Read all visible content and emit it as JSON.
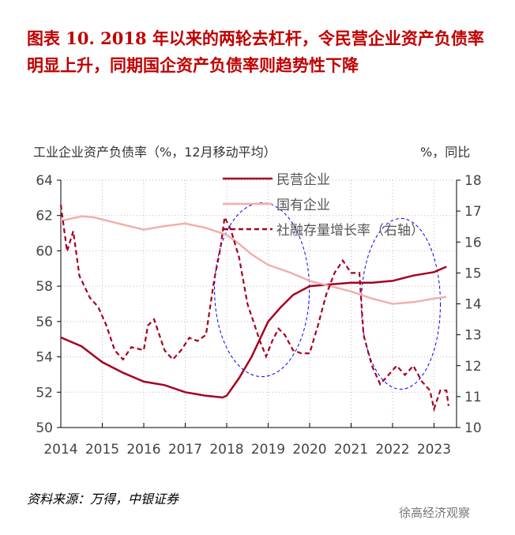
{
  "title": "图表 10. 2018 年以来的两轮去杠杆，令民营企业资产负债率明显上升，同期国企资产负债率则趋势性下降",
  "source": "资料来源：万得，中银证券",
  "watermark": "徐高经济观察",
  "chart_data": {
    "type": "line",
    "ylabel_left": "工业企业资产负债率（%，12月移动平均）",
    "ylabel_right": "%，同比",
    "ylim_left": [
      50,
      64
    ],
    "yticks_left": [
      "50",
      "52",
      "54",
      "56",
      "58",
      "60",
      "62",
      "64"
    ],
    "ylim_right": [
      10,
      18
    ],
    "yticks_right": [
      "10",
      "11",
      "12",
      "13",
      "14",
      "15",
      "16",
      "17",
      "18"
    ],
    "xticks": [
      "2014",
      "2015",
      "2016",
      "2017",
      "2018",
      "2019",
      "2020",
      "2021",
      "2022",
      "2023"
    ],
    "grid": true,
    "legend_placement": "top-center",
    "series": [
      {
        "name": "民营企业",
        "axis": "left",
        "color": "#a50021",
        "style": "solid",
        "x": [
          2014.0,
          2014.5,
          2015.0,
          2015.5,
          2016.0,
          2016.5,
          2017.0,
          2017.5,
          2017.9,
          2018.0,
          2018.3,
          2018.6,
          2018.8,
          2019.0,
          2019.3,
          2019.6,
          2020.0,
          2020.5,
          2021.0,
          2021.5,
          2022.0,
          2022.5,
          2023.0,
          2023.3
        ],
        "y": [
          55.1,
          54.6,
          53.7,
          53.1,
          52.6,
          52.4,
          52.0,
          51.8,
          51.7,
          51.8,
          52.8,
          54.0,
          55.0,
          56.0,
          56.8,
          57.5,
          58.0,
          58.1,
          58.2,
          58.2,
          58.3,
          58.6,
          58.8,
          59.1
        ]
      },
      {
        "name": "国有企业",
        "axis": "left",
        "color": "#f0b0aa",
        "style": "solid",
        "x": [
          2014.0,
          2014.5,
          2014.8,
          2015.3,
          2016.0,
          2016.5,
          2017.0,
          2017.5,
          2018.0,
          2018.3,
          2018.6,
          2019.0,
          2019.5,
          2020.0,
          2020.5,
          2021.0,
          2021.5,
          2022.0,
          2022.5,
          2023.0,
          2023.3
        ],
        "y": [
          61.7,
          61.95,
          61.9,
          61.6,
          61.2,
          61.4,
          61.55,
          61.3,
          60.9,
          60.4,
          59.8,
          59.2,
          58.8,
          58.3,
          58.0,
          57.7,
          57.3,
          57.0,
          57.1,
          57.3,
          57.4
        ]
      },
      {
        "name": "社融存量增长率（右轴）",
        "axis": "right",
        "color": "#a50021",
        "style": "dashed",
        "x": [
          2014.0,
          2014.15,
          2014.3,
          2014.45,
          2014.7,
          2014.9,
          2015.1,
          2015.3,
          2015.5,
          2015.7,
          2016.0,
          2016.1,
          2016.25,
          2016.5,
          2016.7,
          2016.9,
          2017.1,
          2017.3,
          2017.5,
          2017.7,
          2017.85,
          2017.95,
          2018.1,
          2018.3,
          2018.5,
          2018.7,
          2018.8,
          2018.95,
          2019.1,
          2019.25,
          2019.4,
          2019.6,
          2019.8,
          2020.0,
          2020.2,
          2020.4,
          2020.6,
          2020.8,
          2021.0,
          2021.2,
          2021.3,
          2021.5,
          2021.7,
          2021.9,
          2022.1,
          2022.3,
          2022.5,
          2022.7,
          2022.9,
          2023.0,
          2023.15,
          2023.3,
          2023.35
        ],
        "y": [
          17.2,
          15.7,
          16.35,
          14.9,
          14.2,
          13.9,
          13.3,
          12.5,
          12.2,
          12.6,
          12.5,
          13.3,
          13.5,
          12.5,
          12.2,
          12.5,
          12.9,
          12.8,
          13.0,
          14.8,
          15.8,
          16.8,
          16.4,
          15.5,
          14.0,
          13.2,
          12.8,
          12.3,
          12.8,
          13.2,
          13.0,
          12.5,
          12.4,
          12.4,
          13.3,
          14.3,
          15.0,
          15.4,
          15.0,
          15.0,
          13.0,
          12.0,
          11.4,
          11.7,
          12.0,
          11.7,
          12.0,
          11.5,
          11.2,
          10.6,
          11.2,
          11.2,
          10.7
        ]
      }
    ],
    "annotations": [
      {
        "type": "ellipse",
        "color": "#0000ff",
        "x_center": 2018.85,
        "y_center_left": 57.8
      },
      {
        "type": "ellipse",
        "color": "#0000ff",
        "x_center": 2022.2,
        "y_center_left": 57.0
      }
    ]
  }
}
